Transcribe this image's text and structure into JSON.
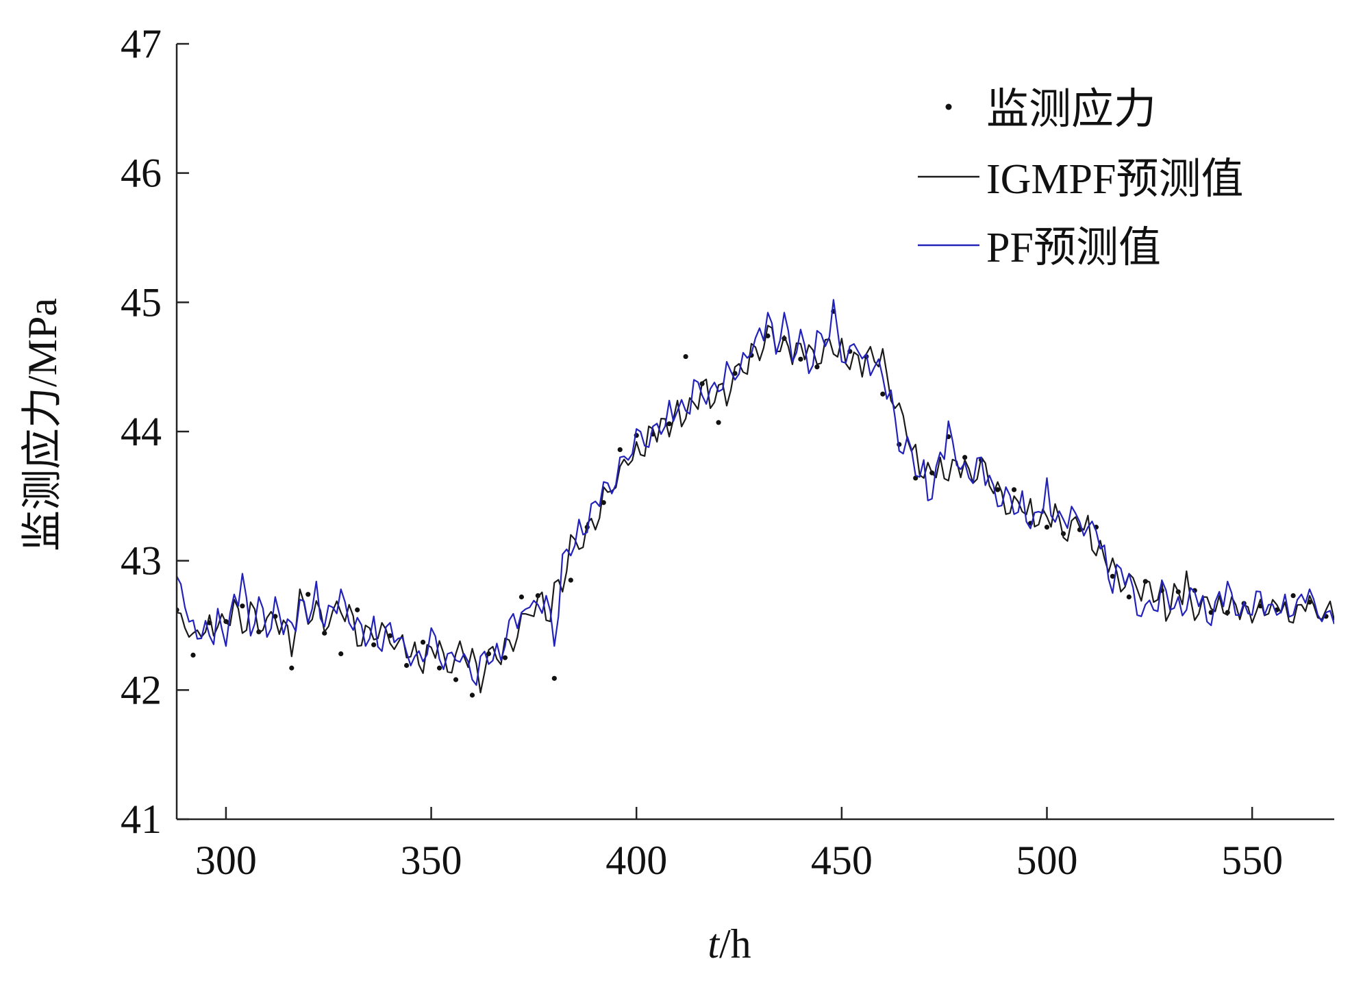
{
  "chart_data": {
    "type": "line",
    "xlabel": {
      "italic": "t",
      "rest": "/h"
    },
    "ylabel": "监测应力/MPa",
    "xlim": [
      288,
      570
    ],
    "ylim": [
      41,
      47
    ],
    "xticks": [
      300,
      350,
      400,
      450,
      500,
      550
    ],
    "yticks": [
      41,
      42,
      43,
      44,
      45,
      46,
      47
    ],
    "grid": false,
    "legend_position": "top-right",
    "series": [
      {
        "name": "监测应力",
        "style": "points",
        "color": "#111111",
        "x": [
          288,
          292,
          296,
          300,
          304,
          308,
          312,
          316,
          320,
          324,
          328,
          332,
          336,
          340,
          344,
          348,
          352,
          356,
          360,
          364,
          368,
          372,
          376,
          380,
          384,
          388,
          392,
          396,
          400,
          404,
          408,
          412,
          416,
          420,
          424,
          428,
          432,
          436,
          440,
          444,
          448,
          452,
          456,
          460,
          464,
          468,
          472,
          476,
          480,
          484,
          488,
          492,
          496,
          500,
          504,
          508,
          512,
          516,
          520,
          524,
          528,
          532,
          536,
          540,
          544,
          548,
          552,
          556,
          560,
          564,
          568
        ],
        "values": [
          42.62,
          42.27,
          42.52,
          42.53,
          42.65,
          42.45,
          42.57,
          42.17,
          42.74,
          42.44,
          42.28,
          42.62,
          42.35,
          42.42,
          42.19,
          42.37,
          42.17,
          42.08,
          41.96,
          42.28,
          42.25,
          42.72,
          42.73,
          42.09,
          42.85,
          43.26,
          43.45,
          43.86,
          43.97,
          43.98,
          44.06,
          44.58,
          44.37,
          44.07,
          44.45,
          44.59,
          44.74,
          44.72,
          44.56,
          44.5,
          44.93,
          44.62,
          44.58,
          44.29,
          43.9,
          43.64,
          43.68,
          43.96,
          43.8,
          43.78,
          43.55,
          43.55,
          43.29,
          43.26,
          43.21,
          43.24,
          43.26,
          42.88,
          42.72,
          42.84,
          42.77,
          42.76,
          42.77,
          42.6,
          42.6,
          42.67,
          42.65,
          42.62,
          42.73,
          42.68,
          42.57
        ]
      },
      {
        "name": "IGMPF预测值",
        "style": "line",
        "color": "#1a1a1a",
        "x": [
          288,
          290,
          292,
          294,
          296,
          298,
          300,
          302,
          304,
          306,
          308,
          310,
          312,
          314,
          316,
          318,
          320,
          322,
          324,
          326,
          328,
          330,
          332,
          334,
          336,
          338,
          340,
          342,
          344,
          346,
          348,
          350,
          352,
          354,
          356,
          358,
          360,
          362,
          364,
          366,
          368,
          370,
          372,
          374,
          376,
          378,
          380,
          382,
          384,
          386,
          388,
          390,
          392,
          394,
          396,
          398,
          400,
          402,
          404,
          406,
          408,
          410,
          412,
          414,
          416,
          418,
          420,
          422,
          424,
          426,
          428,
          430,
          432,
          434,
          436,
          438,
          440,
          442,
          444,
          446,
          448,
          450,
          452,
          454,
          456,
          458,
          460,
          462,
          464,
          466,
          468,
          470,
          472,
          474,
          476,
          478,
          480,
          482,
          484,
          486,
          488,
          490,
          492,
          494,
          496,
          498,
          500,
          502,
          504,
          506,
          508,
          510,
          512,
          514,
          516,
          518,
          520,
          522,
          524,
          526,
          528,
          530,
          532,
          534,
          536,
          538,
          540,
          542,
          544,
          546,
          548,
          550,
          552,
          554,
          556,
          558,
          560,
          562,
          564,
          566,
          568,
          570
        ],
        "values": [
          42.52,
          42.6,
          42.38,
          42.45,
          42.48,
          42.55,
          42.5,
          42.58,
          42.52,
          42.63,
          42.54,
          42.42,
          42.6,
          42.52,
          42.38,
          42.62,
          42.57,
          42.65,
          42.55,
          42.53,
          42.62,
          42.6,
          42.48,
          42.4,
          42.43,
          42.4,
          42.44,
          42.35,
          42.31,
          42.27,
          42.25,
          42.29,
          42.3,
          42.24,
          42.22,
          42.28,
          42.2,
          42.14,
          42.23,
          42.28,
          42.34,
          42.4,
          42.45,
          42.6,
          42.7,
          42.62,
          42.73,
          42.88,
          43.02,
          43.15,
          43.25,
          43.34,
          43.45,
          43.58,
          43.65,
          43.76,
          43.86,
          43.91,
          43.98,
          44.02,
          44.08,
          44.14,
          44.16,
          44.2,
          44.24,
          44.28,
          44.3,
          44.38,
          44.42,
          44.5,
          44.58,
          44.63,
          44.7,
          44.68,
          44.72,
          44.66,
          44.58,
          44.63,
          44.6,
          44.65,
          44.62,
          44.6,
          44.58,
          44.55,
          44.52,
          44.6,
          44.5,
          44.36,
          44.16,
          43.96,
          43.8,
          43.72,
          43.64,
          43.68,
          43.72,
          43.75,
          43.7,
          43.66,
          43.7,
          43.62,
          43.55,
          43.48,
          43.42,
          43.4,
          43.38,
          43.34,
          43.3,
          43.32,
          43.28,
          43.25,
          43.3,
          43.21,
          43.12,
          43.0,
          42.92,
          42.88,
          42.84,
          42.8,
          42.77,
          42.74,
          42.72,
          42.7,
          42.72,
          42.7,
          42.68,
          42.66,
          42.65,
          42.63,
          42.66,
          42.62,
          42.6,
          42.62,
          42.62,
          42.63,
          42.64,
          42.62,
          42.6,
          42.62,
          42.63,
          42.62,
          42.6,
          42.58
        ],
        "noise": [
          0.08,
          -0.12,
          0.06,
          -0.04,
          0.1,
          -0.06,
          0.02,
          0.12,
          -0.08,
          0.05,
          -0.1,
          0.14,
          -0.05,
          0.02,
          -0.12,
          0.16,
          -0.06,
          0.04,
          -0.1,
          0.08,
          -0.02,
          0.06,
          -0.14,
          0.1,
          -0.04,
          0.12,
          -0.08,
          0.02,
          -0.06,
          0.1,
          -0.12,
          0.04,
          0.08,
          -0.1,
          0.06,
          -0.02,
          0.12,
          -0.16,
          0.08,
          -0.04,
          0.06,
          -0.1,
          0.14,
          -0.02,
          0.02,
          -0.08,
          0.1,
          -0.12,
          0.18,
          -0.06,
          0.04,
          -0.1,
          0.12,
          -0.04,
          0.08,
          -0.02,
          0.06,
          -0.1,
          0.04,
          0.08,
          -0.12,
          0.1,
          -0.06,
          0.02,
          0.14,
          -0.1,
          0.06,
          -0.18,
          0.08,
          -0.04,
          0.1,
          -0.08,
          0.12,
          -0.06,
          0.02,
          -0.14,
          0.1,
          0.04,
          -0.08,
          0.06,
          -0.02,
          0.12,
          -0.1,
          0.04,
          0.08,
          -0.06,
          0.14,
          -0.12,
          0.06,
          -0.02,
          0.1,
          -0.08,
          0.04,
          0.12,
          -0.1,
          0.02,
          0.08,
          -0.06,
          0.1,
          -0.04,
          0.06,
          -0.12,
          0.08,
          -0.02,
          0.1,
          -0.06,
          0.04,
          0.12,
          -0.1,
          0.06,
          -0.04,
          0.14,
          -0.08,
          0.02,
          0.1,
          -0.12,
          0.06,
          -0.02,
          0.08,
          -0.06,
          0.12,
          -0.1,
          0.04,
          0.22,
          -0.14,
          0.06,
          -0.02,
          0.1,
          -0.08,
          0.04,
          0.06,
          -0.1,
          0.08,
          -0.04,
          0.02,
          0.06,
          -0.08,
          0.04,
          0.1,
          -0.06,
          0.02,
          -0.04
        ]
      },
      {
        "name": "PF预测值",
        "style": "line",
        "color": "#2222bb",
        "x": [
          288,
          290,
          292,
          294,
          296,
          298,
          300,
          302,
          304,
          306,
          308,
          310,
          312,
          314,
          316,
          318,
          320,
          322,
          324,
          326,
          328,
          330,
          332,
          334,
          336,
          338,
          340,
          342,
          344,
          346,
          348,
          350,
          352,
          354,
          356,
          358,
          360,
          362,
          364,
          366,
          368,
          370,
          372,
          374,
          376,
          378,
          380,
          382,
          384,
          386,
          388,
          390,
          392,
          394,
          396,
          398,
          400,
          402,
          404,
          406,
          408,
          410,
          412,
          414,
          416,
          418,
          420,
          422,
          424,
          426,
          428,
          430,
          432,
          434,
          436,
          438,
          440,
          442,
          444,
          446,
          448,
          450,
          452,
          454,
          456,
          458,
          460,
          462,
          464,
          466,
          468,
          470,
          472,
          474,
          476,
          478,
          480,
          482,
          484,
          486,
          488,
          490,
          492,
          494,
          496,
          498,
          500,
          502,
          504,
          506,
          508,
          510,
          512,
          514,
          516,
          518,
          520,
          522,
          524,
          526,
          528,
          530,
          532,
          534,
          536,
          538,
          540,
          542,
          544,
          546,
          548,
          550,
          552,
          554,
          556,
          558,
          560,
          562,
          564,
          566,
          568,
          570
        ],
        "values": [
          42.78,
          42.7,
          42.42,
          42.5,
          42.38,
          42.55,
          42.46,
          42.6,
          42.86,
          42.5,
          42.62,
          42.45,
          42.66,
          42.55,
          42.42,
          42.68,
          42.6,
          42.72,
          42.55,
          42.6,
          42.68,
          42.62,
          42.5,
          42.38,
          42.45,
          42.38,
          42.5,
          42.3,
          42.35,
          42.22,
          42.32,
          42.36,
          42.28,
          42.2,
          42.35,
          42.18,
          42.1,
          42.2,
          42.3,
          42.22,
          42.4,
          42.55,
          42.5,
          42.72,
          42.6,
          42.75,
          42.38,
          42.95,
          43.1,
          43.2,
          43.3,
          43.42,
          43.55,
          43.62,
          43.72,
          43.8,
          43.92,
          43.95,
          44.0,
          44.06,
          44.12,
          44.2,
          44.1,
          44.3,
          44.4,
          44.25,
          44.35,
          44.4,
          44.5,
          44.55,
          44.62,
          44.7,
          44.9,
          44.68,
          44.8,
          44.6,
          44.75,
          44.55,
          44.7,
          44.68,
          44.88,
          44.62,
          44.6,
          44.66,
          44.5,
          44.56,
          44.4,
          44.2,
          43.95,
          43.9,
          43.7,
          43.66,
          43.56,
          43.8,
          43.9,
          43.8,
          43.68,
          43.7,
          43.76,
          43.6,
          43.5,
          43.45,
          43.4,
          43.48,
          43.35,
          43.3,
          43.5,
          43.36,
          43.28,
          43.32,
          43.38,
          43.2,
          43.25,
          43.0,
          42.85,
          42.9,
          42.82,
          42.7,
          42.6,
          42.66,
          42.75,
          42.7,
          42.6,
          42.68,
          42.74,
          42.65,
          42.6,
          42.7,
          42.72,
          42.62,
          42.6,
          42.68,
          42.72,
          42.6,
          42.66,
          42.64,
          42.62,
          42.68,
          42.7,
          42.64,
          42.58,
          42.55
        ],
        "noise": [
          0.1,
          -0.06,
          0.12,
          -0.1,
          0.04,
          0.08,
          -0.12,
          0.14,
          0.04,
          -0.08,
          0.1,
          -0.04,
          0.06,
          -0.12,
          0.1,
          0.02,
          -0.08,
          0.12,
          -0.06,
          0.04,
          0.1,
          -0.1,
          0.06,
          -0.04,
          0.12,
          -0.08,
          0.02,
          0.1,
          -0.06,
          0.04,
          -0.1,
          0.12,
          -0.04,
          0.08,
          -0.12,
          0.1,
          -0.02,
          0.06,
          -0.1,
          0.14,
          -0.06,
          0.04,
          0.1,
          -0.08,
          0.06,
          -0.02,
          -0.04,
          0.1,
          -0.06,
          0.12,
          -0.08,
          0.04,
          0.06,
          -0.1,
          0.08,
          -0.02,
          0.1,
          -0.06,
          0.04,
          -0.08,
          0.12,
          -0.04,
          0.06,
          0.1,
          -0.12,
          0.08,
          -0.04,
          0.14,
          -0.1,
          0.06,
          -0.02,
          0.1,
          0.02,
          -0.08,
          0.12,
          -0.06,
          0.04,
          -0.1,
          0.08,
          -0.02,
          0.14,
          -0.08,
          0.06,
          -0.04,
          0.1,
          -0.06,
          0.02,
          0.12,
          -0.1,
          0.06,
          -0.04,
          0.12,
          -0.08,
          0.04,
          0.18,
          -0.06,
          0.08,
          -0.1,
          0.04,
          0.06,
          -0.08,
          0.12,
          -0.04,
          0.06,
          -0.1,
          0.08,
          0.14,
          -0.06,
          0.04,
          0.1,
          -0.08,
          0.06,
          -0.02,
          0.12,
          -0.1,
          0.04,
          0.08,
          -0.12,
          0.06,
          -0.04,
          0.1,
          -0.08,
          0.12,
          -0.06,
          0.02,
          0.08,
          -0.1,
          0.06,
          0.12,
          -0.04,
          0.08,
          -0.1,
          0.04,
          0.06,
          -0.08,
          0.1,
          -0.04,
          0.06,
          0.08,
          -0.06,
          0.02,
          -0.04
        ]
      }
    ]
  }
}
